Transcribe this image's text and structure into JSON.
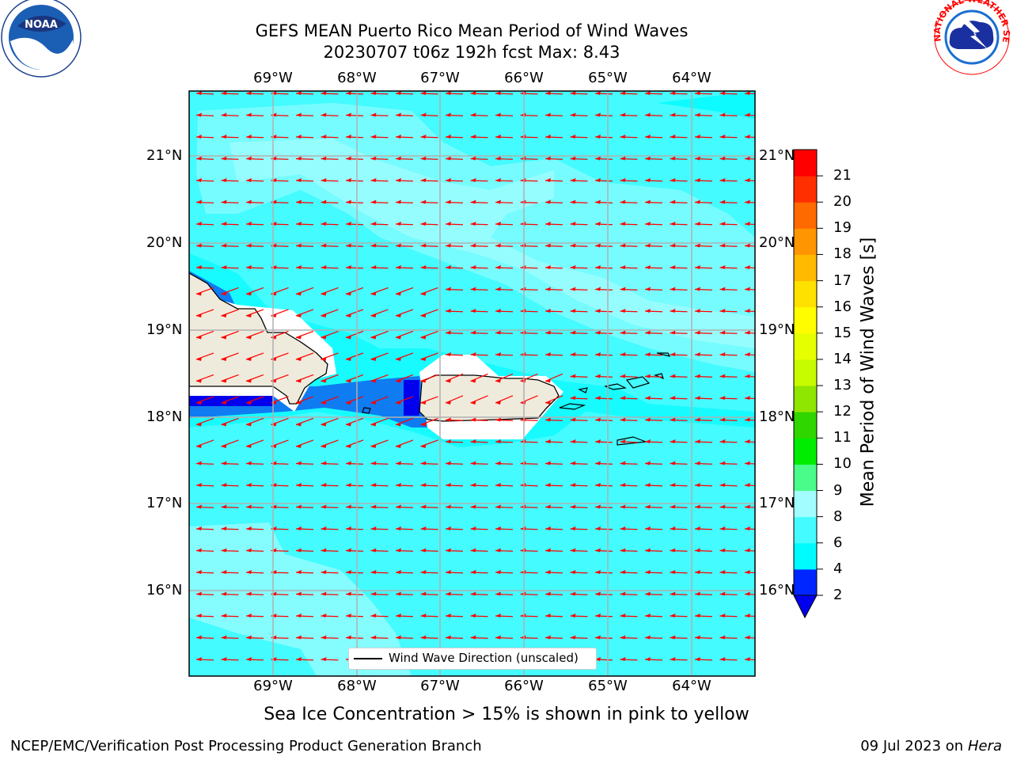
{
  "header": {
    "title_line1": "GEFS MEAN Puerto Rico Mean Period of Wind Waves",
    "title_line2": "20230707 t06z 192h fcst   Max: 8.43"
  },
  "logos": {
    "left": {
      "name": "noaa-logo",
      "text": "NOAA",
      "ring_text": "NATIONAL OCEANIC AND ATMOSPHERIC ADMINISTRATION · U.S. DEPARTMENT OF COMMERCE"
    },
    "right": {
      "name": "nws-logo",
      "ring_text": "NATIONAL WEATHER SERVICE"
    }
  },
  "map": {
    "lon_labels": [
      "69°W",
      "68°W",
      "67°W",
      "66°W",
      "65°W",
      "64°W"
    ],
    "lat_labels": [
      "21°N",
      "20°N",
      "19°N",
      "18°N",
      "17°N",
      "16°N"
    ],
    "legend_label": "Wind Wave Direction (unscaled)",
    "arrow_color": "#ff0000",
    "land_color": "#efebdc",
    "coast_color": "#000000"
  },
  "colorbar": {
    "title": "Mean Period of Wind Waves [s]",
    "ticks": [
      "2",
      "4",
      "6",
      "8",
      "9",
      "10",
      "11",
      "12",
      "13",
      "14",
      "15",
      "16",
      "17",
      "18",
      "19",
      "20",
      "21"
    ],
    "colors": [
      "#0026ff",
      "#00fbff",
      "#44fbff",
      "#a1fdff",
      "#4afc8a",
      "#00ec00",
      "#2fd600",
      "#8fe600",
      "#c6fb00",
      "#e6ff00",
      "#fffd00",
      "#ffe100",
      "#ffba00",
      "#ff9500",
      "#ff6a00",
      "#ff2f00",
      "#ff0000"
    ],
    "under_color": "#0000ee"
  },
  "footer": {
    "note": "Sea Ice Concentration > 15% is shown in pink to yellow",
    "credit": "NCEP/EMC/Verification Post Processing Product Generation Branch",
    "date": "09 Jul 2023 on ",
    "host": "Hera"
  }
}
